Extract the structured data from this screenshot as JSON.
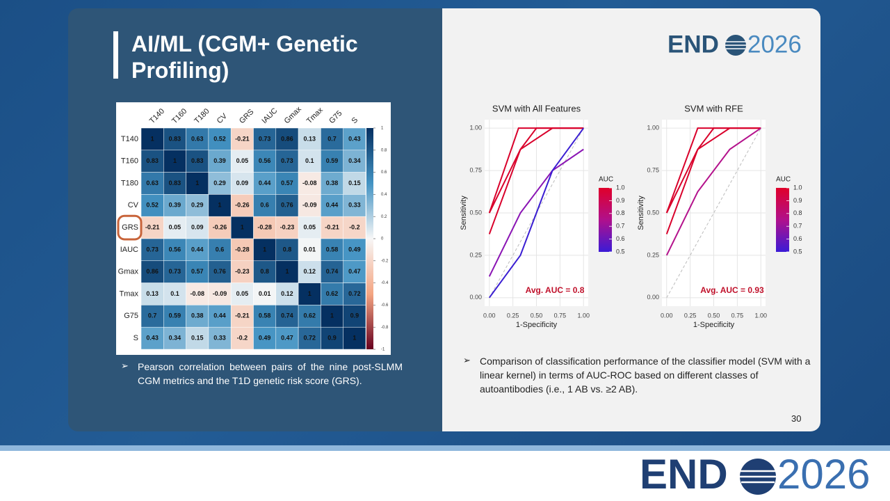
{
  "slide": {
    "title": "AI/ML (CGM+ Genetic Profiling)",
    "caption_left": "Pearson correlation between pairs of the nine post-SLMM CGM metrics and the T1D genetic risk score (GRS).",
    "caption_right": "Comparison of classification performance of the classifier model (SVM with a linear kernel) in terms of AUC-ROC based on different classes of autoantibodies (i.e., 1 AB vs. ≥2 AB).",
    "page_number": "30",
    "logo": {
      "left": "END",
      "right": "2026"
    }
  },
  "chart_data": [
    {
      "type": "heatmap",
      "labels": [
        "T140",
        "T160",
        "T180",
        "CV",
        "GRS",
        "IAUC",
        "Gmax",
        "Tmax",
        "G75",
        "S"
      ],
      "values": [
        [
          1,
          0.83,
          0.63,
          0.52,
          -0.21,
          0.73,
          0.86,
          0.13,
          0.7,
          0.43
        ],
        [
          0.83,
          1,
          0.83,
          0.39,
          0.05,
          0.56,
          0.73,
          0.1,
          0.59,
          0.34
        ],
        [
          0.63,
          0.83,
          1,
          0.29,
          0.09,
          0.44,
          0.57,
          -0.08,
          0.38,
          0.15
        ],
        [
          0.52,
          0.39,
          0.29,
          1,
          -0.26,
          0.6,
          0.76,
          -0.09,
          0.44,
          0.33
        ],
        [
          -0.21,
          0.05,
          0.09,
          -0.26,
          1,
          -0.28,
          -0.23,
          0.05,
          -0.21,
          -0.2
        ],
        [
          0.73,
          0.56,
          0.44,
          0.6,
          -0.28,
          1,
          0.8,
          0.01,
          0.58,
          0.49
        ],
        [
          0.86,
          0.73,
          0.57,
          0.76,
          -0.23,
          0.8,
          1,
          0.12,
          0.74,
          0.47
        ],
        [
          0.13,
          0.1,
          -0.08,
          -0.09,
          0.05,
          0.01,
          0.12,
          1,
          0.62,
          0.72
        ],
        [
          0.7,
          0.59,
          0.38,
          0.44,
          -0.21,
          0.58,
          0.74,
          0.62,
          1,
          0.9
        ],
        [
          0.43,
          0.34,
          0.15,
          0.33,
          -0.2,
          0.49,
          0.47,
          0.72,
          0.9,
          1
        ]
      ],
      "colorbar_ticks": [
        1,
        0.8,
        0.6,
        0.4,
        0.2,
        0,
        -0.2,
        -0.4,
        -0.6,
        -0.8,
        -1
      ]
    },
    {
      "type": "line",
      "title": "SVM with All Features",
      "xlabel": "1-Specificity",
      "ylabel": "Sensitivity",
      "xlim": [
        -0.05,
        1.05
      ],
      "ylim": [
        -0.05,
        1.05
      ],
      "xticks": [
        {
          "value": 0,
          "label": "0.00"
        },
        0.25,
        {
          "value": 0.5,
          "label": "0.50"
        },
        0.75,
        {
          "value": 1,
          "label": "1.00"
        }
      ],
      "yticks": [
        {
          "value": 0,
          "label": "0.00"
        },
        0.25,
        {
          "value": 0.5,
          "label": "0.50"
        },
        0.75,
        {
          "value": 1,
          "label": "1.00"
        }
      ],
      "annotation": "Avg. AUC = 0.8",
      "legend_title": "AUC",
      "legend_ticks": [
        {
          "value": 1,
          "label": "1.0"
        },
        0.9,
        0.8,
        0.7,
        0.6,
        0.5
      ],
      "series": [
        {
          "color": "#d9002b",
          "x": [
            0,
            0.31,
            1
          ],
          "y": [
            0.5,
            1,
            1
          ]
        },
        {
          "color": "#d9002b",
          "x": [
            0,
            0.33,
            0.67,
            1
          ],
          "y": [
            0.5,
            0.875,
            1,
            1
          ]
        },
        {
          "color": "#d9002b",
          "x": [
            0,
            0.33,
            0.5,
            1
          ],
          "y": [
            0.375,
            0.875,
            1,
            1
          ]
        },
        {
          "color": "#8a14b4",
          "x": [
            0,
            0.33,
            0.67,
            1
          ],
          "y": [
            0.125,
            0.5,
            0.75,
            0.875
          ]
        },
        {
          "color": "#3a1ed2",
          "x": [
            0,
            0.33,
            0.67,
            1
          ],
          "y": [
            0,
            0.25,
            0.75,
            1
          ]
        }
      ]
    },
    {
      "type": "line",
      "title": "SVM with RFE",
      "xlabel": "1-Specificity",
      "ylabel": "Sensitivity",
      "xlim": [
        -0.05,
        1.05
      ],
      "ylim": [
        -0.05,
        1.05
      ],
      "xticks": [
        {
          "value": 0,
          "label": "0.00"
        },
        0.25,
        {
          "value": 0.5,
          "label": "0.50"
        },
        0.75,
        {
          "value": 1,
          "label": "1.00"
        }
      ],
      "yticks": [
        {
          "value": 0,
          "label": "0.00"
        },
        0.25,
        {
          "value": 0.5,
          "label": "0.50"
        },
        0.75,
        {
          "value": 1,
          "label": "1.00"
        }
      ],
      "annotation": "Avg. AUC = 0.93",
      "legend_title": "AUC",
      "legend_ticks": [
        {
          "value": 1,
          "label": "1.0"
        },
        0.9,
        0.8,
        0.7,
        0.6,
        0.5
      ],
      "series": [
        {
          "color": "#d9002b",
          "x": [
            0,
            0.33,
            1
          ],
          "y": [
            0.5,
            1,
            1
          ]
        },
        {
          "color": "#d9002b",
          "x": [
            0,
            0.33,
            0.67,
            1
          ],
          "y": [
            0.5,
            0.875,
            1,
            1
          ]
        },
        {
          "color": "#d9002b",
          "x": [
            0,
            0.33,
            0.5,
            1
          ],
          "y": [
            0.375,
            0.875,
            1,
            1
          ]
        },
        {
          "color": "#b4128c",
          "x": [
            0,
            0.33,
            0.67,
            1
          ],
          "y": [
            0.25,
            0.625,
            0.875,
            1
          ]
        }
      ]
    }
  ]
}
